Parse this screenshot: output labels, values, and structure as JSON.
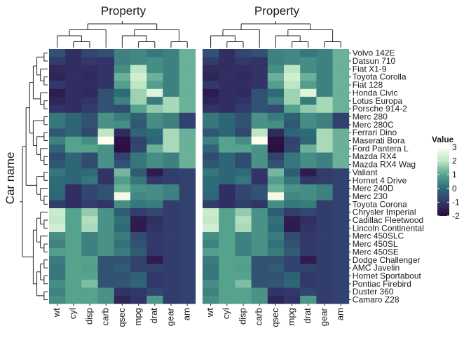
{
  "chart_data": {
    "type": "heatmap",
    "x_axis_title": "Property",
    "y_axis_title": "Car name",
    "legend_title": "Value",
    "legend_ticks": [
      3,
      2,
      1,
      0,
      -1,
      -2
    ],
    "value_range": [
      -2,
      3
    ],
    "colors": {
      "low": "#2a0a3c",
      "lowmid": "#33386b",
      "mid": "#2e6b78",
      "midhigh": "#56a38d",
      "high": "#bde6c4",
      "top": "#fffff0",
      "dendrogram": "#222222"
    },
    "panels": [
      {
        "title": "Property"
      },
      {
        "title": "Property"
      }
    ],
    "columns": [
      "wt",
      "cyl",
      "disp",
      "carb",
      "qsec",
      "mpg",
      "drat",
      "gear",
      "am"
    ],
    "rows": [
      "Volvo 142E",
      "Datsun 710",
      "Fiat X1-9",
      "Toyota Corolla",
      "Fiat 128",
      "Honda Civic",
      "Lotus Europa",
      "Porsche 914-2",
      "Merc 280",
      "Merc 280C",
      "Ferrari Dino",
      "Maserati Bora",
      "Ford Pantera L",
      "Mazda RX4",
      "Mazda RX4 Wag",
      "Valiant",
      "Hornet 4 Drive",
      "Merc 240D",
      "Merc 230",
      "Toyota Corona",
      "Chrysler Imperial",
      "Cadillac Fleetwood",
      "Lincoln Continental",
      "Merc 450SLC",
      "Merc 450SL",
      "Merc 450SE",
      "Dodge Challenger",
      "AMC Javelin",
      "Hornet Sportabout",
      "Pontiac Firebird",
      "Duster 360",
      "Camaro Z28"
    ],
    "values": [
      [
        -0.5,
        -1.2,
        -0.7,
        -0.5,
        0.4,
        0.5,
        0.2,
        0.4,
        1.2
      ],
      [
        -0.9,
        -1.2,
        -1.0,
        -1.1,
        0.4,
        0.5,
        0.6,
        0.4,
        1.2
      ],
      [
        -1.3,
        -1.2,
        -1.2,
        -1.1,
        0.6,
        2.0,
        0.6,
        0.4,
        1.2
      ],
      [
        -1.4,
        -1.2,
        -1.3,
        -1.1,
        1.2,
        2.3,
        1.2,
        0.4,
        1.2
      ],
      [
        -1.0,
        -1.2,
        -1.2,
        -1.1,
        0.9,
        2.0,
        0.9,
        0.4,
        1.2
      ],
      [
        -1.6,
        -1.2,
        -1.3,
        -0.5,
        0.0,
        1.7,
        2.5,
        0.4,
        1.2
      ],
      [
        -1.4,
        -1.2,
        -1.1,
        -0.5,
        0.4,
        1.7,
        0.3,
        1.8,
        1.2
      ],
      [
        -1.1,
        -1.2,
        -0.9,
        -0.5,
        -0.6,
        1.0,
        1.6,
        1.8,
        1.2
      ],
      [
        0.2,
        -0.1,
        -0.5,
        0.7,
        0.3,
        -0.2,
        0.6,
        0.4,
        -0.8
      ],
      [
        0.2,
        -0.1,
        -0.5,
        0.7,
        0.6,
        -0.4,
        0.6,
        0.4,
        -0.8
      ],
      [
        -0.4,
        -0.1,
        -0.7,
        2.0,
        -1.3,
        -0.1,
        0.0,
        1.8,
        1.2
      ],
      [
        0.4,
        1.0,
        0.6,
        3.2,
        -1.8,
        -0.8,
        -0.1,
        1.8,
        1.2
      ],
      [
        -0.1,
        1.0,
        1.0,
        0.7,
        -1.9,
        -0.7,
        1.2,
        1.8,
        1.2
      ],
      [
        -0.6,
        -0.1,
        -0.6,
        0.7,
        -0.8,
        0.2,
        0.6,
        0.4,
        1.2
      ],
      [
        -0.4,
        -0.1,
        -0.6,
        0.7,
        -0.5,
        0.2,
        0.6,
        0.4,
        1.2
      ],
      [
        0.2,
        -0.1,
        -0.0,
        -1.1,
        1.3,
        -0.3,
        -1.6,
        -0.9,
        -0.8
      ],
      [
        -0.0,
        -0.1,
        0.2,
        -1.1,
        0.9,
        0.2,
        -1.0,
        -0.9,
        -0.8
      ],
      [
        -0.0,
        -1.2,
        -0.7,
        -0.5,
        1.2,
        0.7,
        0.6,
        0.4,
        -0.8
      ],
      [
        -0.1,
        -1.2,
        -0.7,
        -0.5,
        2.8,
        0.5,
        0.6,
        0.4,
        -0.8
      ],
      [
        -0.9,
        -1.2,
        -0.9,
        -1.1,
        0.6,
        0.2,
        0.3,
        -0.9,
        -0.8
      ],
      [
        2.2,
        1.0,
        1.6,
        0.7,
        -0.3,
        -0.9,
        -0.7,
        -0.9,
        -0.8
      ],
      [
        2.1,
        1.0,
        1.9,
        0.7,
        0.1,
        -1.6,
        -1.2,
        -0.9,
        -0.8
      ],
      [
        2.3,
        1.0,
        1.8,
        0.7,
        -0.0,
        -1.6,
        -1.1,
        -0.9,
        -0.8
      ],
      [
        0.6,
        1.0,
        0.4,
        0.7,
        0.3,
        -0.6,
        -1.0,
        -0.9,
        -0.8
      ],
      [
        0.4,
        1.0,
        0.4,
        0.7,
        0.1,
        -0.5,
        -1.0,
        -0.9,
        -0.8
      ],
      [
        0.9,
        1.0,
        0.4,
        0.7,
        0.3,
        -0.3,
        -1.0,
        -0.9,
        -0.8
      ],
      [
        0.3,
        1.0,
        1.0,
        -0.5,
        -0.5,
        -0.8,
        -1.6,
        -0.9,
        -0.8
      ],
      [
        0.2,
        1.0,
        0.9,
        -0.5,
        -0.3,
        -0.8,
        -0.8,
        -0.9,
        -0.8
      ],
      [
        0.2,
        1.0,
        1.0,
        -0.5,
        -0.5,
        -0.2,
        -1.0,
        -0.9,
        -0.8
      ],
      [
        0.6,
        1.0,
        1.4,
        -0.5,
        -0.4,
        -0.1,
        -1.0,
        -0.9,
        -0.8
      ],
      [
        0.4,
        1.0,
        1.0,
        0.7,
        -1.1,
        -1.0,
        -0.7,
        -0.9,
        -0.8
      ],
      [
        0.6,
        1.0,
        1.0,
        0.7,
        -1.4,
        -1.1,
        0.8,
        -0.9,
        -0.8
      ]
    ]
  }
}
